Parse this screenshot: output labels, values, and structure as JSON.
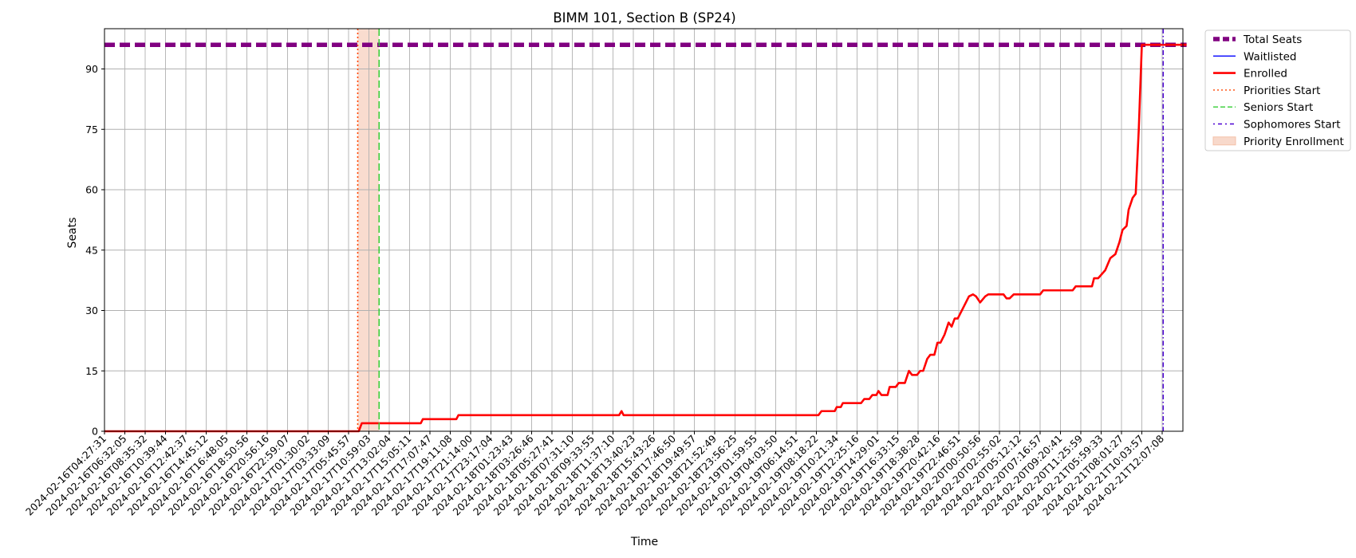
{
  "chart_data": {
    "type": "line",
    "title": "BIMM 101, Section B (SP24)",
    "xlabel": "Time",
    "ylabel": "Seats",
    "ylim": [
      0,
      100
    ],
    "yticks": [
      0,
      15,
      30,
      45,
      60,
      75,
      90
    ],
    "grid": true,
    "legend_position": "outside-top-right",
    "x_tick_labels": [
      "2024-02-16T04:27:31",
      "2024-02-16T06:32:05",
      "2024-02-16T08:35:32",
      "2024-02-16T10:39:44",
      "2024-02-16T12:42:37",
      "2024-02-16T14:45:12",
      "2024-02-16T16:48:05",
      "2024-02-16T18:50:56",
      "2024-02-16T20:56:16",
      "2024-02-16T22:59:07",
      "2024-02-17T01:30:02",
      "2024-02-17T03:33:09",
      "2024-02-17T05:45:57",
      "2024-02-17T10:59:03",
      "2024-02-17T13:02:04",
      "2024-02-17T15:05:11",
      "2024-02-17T17:07:47",
      "2024-02-17T19:11:08",
      "2024-02-17T21:14:00",
      "2024-02-17T23:17:04",
      "2024-02-18T01:23:43",
      "2024-02-18T03:26:46",
      "2024-02-18T05:27:41",
      "2024-02-18T07:31:10",
      "2024-02-18T09:33:55",
      "2024-02-18T11:37:10",
      "2024-02-18T13:40:23",
      "2024-02-18T15:43:26",
      "2024-02-18T17:46:50",
      "2024-02-18T19:49:57",
      "2024-02-18T21:52:49",
      "2024-02-18T23:56:25",
      "2024-02-19T01:59:55",
      "2024-02-19T04:03:50",
      "2024-02-19T06:14:51",
      "2024-02-19T08:18:22",
      "2024-02-19T10:21:34",
      "2024-02-19T12:25:16",
      "2024-02-19T14:29:01",
      "2024-02-19T16:33:15",
      "2024-02-19T18:38:28",
      "2024-02-19T20:42:16",
      "2024-02-19T22:46:51",
      "2024-02-20T00:50:56",
      "2024-02-20T02:55:02",
      "2024-02-20T05:12:12",
      "2024-02-20T07:16:57",
      "2024-02-20T09:20:41",
      "2024-02-20T11:25:59",
      "2024-02-21T05:59:33",
      "2024-02-21T08:01:27",
      "2024-02-21T10:03:57",
      "2024-02-21T12:07:08"
    ],
    "series": [
      {
        "name": "Total Seats",
        "style": "thick-dashed",
        "color": "#800080",
        "points": [
          [
            0,
            96
          ],
          [
            53.2,
            96
          ]
        ]
      },
      {
        "name": "Waitlisted",
        "style": "solid",
        "color": "#0000ff",
        "points": []
      },
      {
        "name": "Enrolled",
        "style": "solid",
        "color": "#ff0000",
        "points": [
          [
            0,
            0
          ],
          [
            12.5,
            0
          ],
          [
            12.65,
            2
          ],
          [
            15.55,
            2
          ],
          [
            15.65,
            3
          ],
          [
            17.3,
            3
          ],
          [
            17.4,
            4
          ],
          [
            25.3,
            4
          ],
          [
            25.42,
            5
          ],
          [
            25.52,
            4
          ],
          [
            35.1,
            4
          ],
          [
            35.25,
            5
          ],
          [
            35.9,
            5
          ],
          [
            36.0,
            6
          ],
          [
            36.2,
            6
          ],
          [
            36.3,
            7
          ],
          [
            37.2,
            7
          ],
          [
            37.35,
            8
          ],
          [
            37.6,
            8
          ],
          [
            37.75,
            9
          ],
          [
            37.95,
            9
          ],
          [
            38.05,
            10
          ],
          [
            38.2,
            9
          ],
          [
            38.5,
            9
          ],
          [
            38.6,
            11
          ],
          [
            38.9,
            11
          ],
          [
            39.05,
            12
          ],
          [
            39.35,
            12
          ],
          [
            39.55,
            15
          ],
          [
            39.7,
            14
          ],
          [
            39.95,
            14
          ],
          [
            40.1,
            15
          ],
          [
            40.25,
            15
          ],
          [
            40.45,
            18
          ],
          [
            40.6,
            19
          ],
          [
            40.8,
            19
          ],
          [
            40.95,
            22
          ],
          [
            41.1,
            22
          ],
          [
            41.3,
            24
          ],
          [
            41.5,
            27
          ],
          [
            41.65,
            26
          ],
          [
            41.8,
            28
          ],
          [
            41.95,
            28
          ],
          [
            42.25,
            31
          ],
          [
            42.5,
            33.5
          ],
          [
            42.7,
            34
          ],
          [
            42.85,
            33.5
          ],
          [
            43.05,
            32
          ],
          [
            43.3,
            33.5
          ],
          [
            43.45,
            34
          ],
          [
            44.2,
            34
          ],
          [
            44.35,
            33
          ],
          [
            44.5,
            33
          ],
          [
            44.7,
            34
          ],
          [
            46.0,
            34
          ],
          [
            46.15,
            35
          ],
          [
            47.6,
            35
          ],
          [
            47.75,
            36
          ],
          [
            48.55,
            36
          ],
          [
            48.65,
            38
          ],
          [
            48.85,
            38
          ],
          [
            49.2,
            40
          ],
          [
            49.45,
            43
          ],
          [
            49.7,
            44
          ],
          [
            49.9,
            47
          ],
          [
            50.05,
            50
          ],
          [
            50.25,
            51
          ],
          [
            50.35,
            55
          ],
          [
            50.55,
            58
          ],
          [
            50.7,
            59
          ],
          [
            50.85,
            75
          ],
          [
            51.0,
            96
          ],
          [
            53.2,
            96
          ]
        ]
      }
    ],
    "markers": [
      {
        "name": "Priorities Start",
        "style": "dotted",
        "color": "#ff4500",
        "x": 12.45
      },
      {
        "name": "Seniors Start",
        "style": "dashed",
        "color": "#32cd32",
        "x": 13.5
      },
      {
        "name": "Sophomores Start",
        "style": "dashdot",
        "color": "#4b00d2",
        "x": 52.05
      }
    ],
    "shaded_region": {
      "name": "Priority Enrollment",
      "color": "#f4c0a8",
      "x_start": 12.45,
      "x_end": 13.5
    },
    "legend": [
      {
        "label": "Total Seats",
        "kind": "thick-dashed",
        "color": "#800080"
      },
      {
        "label": "Waitlisted",
        "kind": "solid",
        "color": "#0000ff"
      },
      {
        "label": "Enrolled",
        "kind": "solid-thick",
        "color": "#ff0000"
      },
      {
        "label": "Priorities Start",
        "kind": "dotted",
        "color": "#ff4500"
      },
      {
        "label": "Seniors Start",
        "kind": "dashed",
        "color": "#32cd32"
      },
      {
        "label": "Sophomores Start",
        "kind": "dashdot",
        "color": "#4b00d2"
      },
      {
        "label": "Priority Enrollment",
        "kind": "patch",
        "color": "#f4c0a8"
      }
    ]
  }
}
